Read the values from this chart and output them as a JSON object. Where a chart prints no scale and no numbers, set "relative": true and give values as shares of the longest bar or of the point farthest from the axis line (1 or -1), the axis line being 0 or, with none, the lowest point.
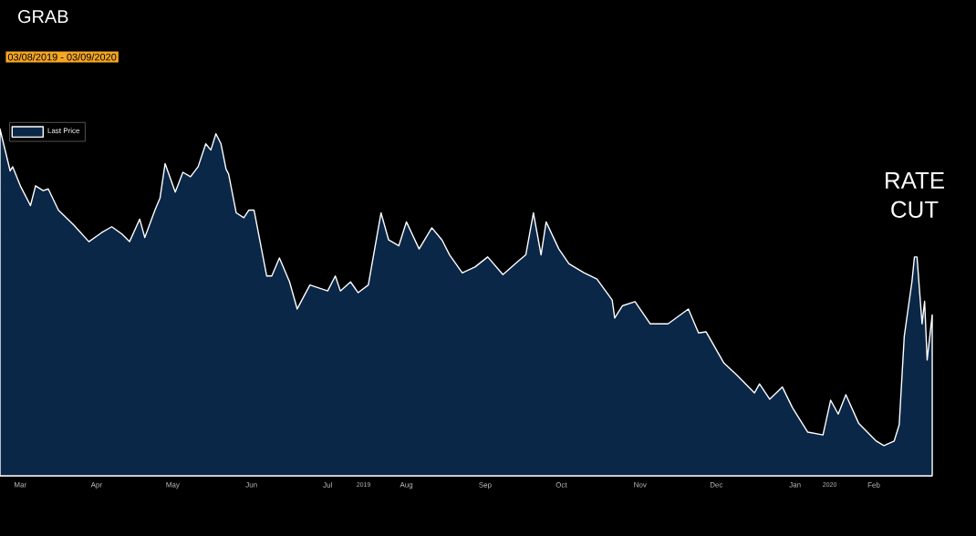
{
  "chart_data": {
    "type": "area",
    "title": "GRAB",
    "subtitle": "03/08/2019 - 03/09/2020",
    "relative": true,
    "legend": "top left",
    "xlim": [
      "2019-03-08",
      "2020-03-09"
    ],
    "xticks": [
      {
        "value": "2019-03-16",
        "label": "Mar"
      },
      {
        "value": "2019-04-15",
        "label": "Apr"
      },
      {
        "value": "2019-05-15",
        "label": "May"
      },
      {
        "value": "2019-06-15",
        "label": "Jun"
      },
      {
        "value": "2019-07-15",
        "label": "Jul"
      },
      {
        "value": "2019-08-15",
        "label": "Aug"
      },
      {
        "value": "2019-09-15",
        "label": "Sep"
      },
      {
        "value": "2019-10-15",
        "label": "Oct"
      },
      {
        "value": "2019-11-15",
        "label": "Nov"
      },
      {
        "value": "2019-12-15",
        "label": "Dec"
      },
      {
        "value": "2020-01-15",
        "label": "Jan"
      },
      {
        "value": "2020-02-15",
        "label": "Feb"
      }
    ],
    "annotations": [
      {
        "text": "RATE CUT",
        "x": "2020-03-02",
        "y": 0.631
      },
      "2019",
      "2020"
    ],
    "series": [
      {
        "name": "Last Price",
        "color": "#0b2747",
        "x": [
          "2019-03-08",
          "2019-03-12",
          "2019-03-13",
          "2019-03-16",
          "2019-03-20",
          "2019-03-22",
          "2019-03-25",
          "2019-03-27",
          "2019-03-31",
          "2019-04-06",
          "2019-04-12",
          "2019-04-17",
          "2019-04-21",
          "2019-04-25",
          "2019-04-28",
          "2019-05-02",
          "2019-05-04",
          "2019-05-08",
          "2019-05-10",
          "2019-05-12",
          "2019-05-16",
          "2019-05-19",
          "2019-05-22",
          "2019-05-25",
          "2019-05-28",
          "2019-05-30",
          "2019-06-01",
          "2019-06-03",
          "2019-06-05",
          "2019-06-06",
          "2019-06-09",
          "2019-06-12",
          "2019-06-14",
          "2019-06-16",
          "2019-06-21",
          "2019-06-23",
          "2019-06-26",
          "2019-06-30",
          "2019-07-03",
          "2019-07-08",
          "2019-07-15",
          "2019-07-18",
          "2019-07-20",
          "2019-07-24",
          "2019-07-27",
          "2019-07-31",
          "2019-08-05",
          "2019-08-08",
          "2019-08-12",
          "2019-08-15",
          "2019-08-20",
          "2019-08-25",
          "2019-08-29",
          "2019-09-01",
          "2019-09-06",
          "2019-09-11",
          "2019-09-16",
          "2019-09-22",
          "2019-09-28",
          "2019-10-01",
          "2019-10-04",
          "2019-10-07",
          "2019-10-09",
          "2019-10-14",
          "2019-10-18",
          "2019-10-24",
          "2019-10-29",
          "2019-11-04",
          "2019-11-05",
          "2019-11-08",
          "2019-11-13",
          "2019-11-19",
          "2019-11-26",
          "2019-12-04",
          "2019-12-08",
          "2019-12-11",
          "2019-12-18",
          "2019-12-23",
          "2019-12-30",
          "2020-01-01",
          "2020-01-05",
          "2020-01-10",
          "2020-01-14",
          "2020-01-20",
          "2020-01-26",
          "2020-01-29",
          "2020-02-01",
          "2020-02-04",
          "2020-02-09",
          "2020-02-16",
          "2020-02-19",
          "2020-02-23",
          "2020-02-25",
          "2020-02-27",
          "2020-03-01",
          "2020-03-02",
          "2020-03-03",
          "2020-03-05",
          "2020-03-06",
          "2020-03-07",
          "2020-03-09"
        ],
        "values": [
          1.0,
          0.879,
          0.891,
          0.836,
          0.779,
          0.836,
          0.822,
          0.827,
          0.766,
          0.723,
          0.675,
          0.701,
          0.718,
          0.697,
          0.675,
          0.74,
          0.687,
          0.766,
          0.801,
          0.9,
          0.818,
          0.875,
          0.862,
          0.891,
          0.957,
          0.939,
          0.986,
          0.957,
          0.884,
          0.87,
          0.758,
          0.744,
          0.766,
          0.766,
          0.576,
          0.576,
          0.628,
          0.559,
          0.481,
          0.55,
          0.533,
          0.576,
          0.533,
          0.559,
          0.528,
          0.55,
          0.758,
          0.68,
          0.663,
          0.732,
          0.654,
          0.715,
          0.68,
          0.637,
          0.585,
          0.602,
          0.631,
          0.58,
          0.619,
          0.637,
          0.758,
          0.637,
          0.732,
          0.654,
          0.611,
          0.585,
          0.567,
          0.507,
          0.455,
          0.49,
          0.502,
          0.438,
          0.438,
          0.481,
          0.412,
          0.415,
          0.325,
          0.291,
          0.239,
          0.265,
          0.221,
          0.256,
          0.196,
          0.126,
          0.118,
          0.218,
          0.178,
          0.234,
          0.152,
          0.1,
          0.087,
          0.1,
          0.147,
          0.403,
          0.559,
          0.631,
          0.631,
          0.438,
          0.503,
          0.334,
          0.464
        ]
      }
    ]
  }
}
